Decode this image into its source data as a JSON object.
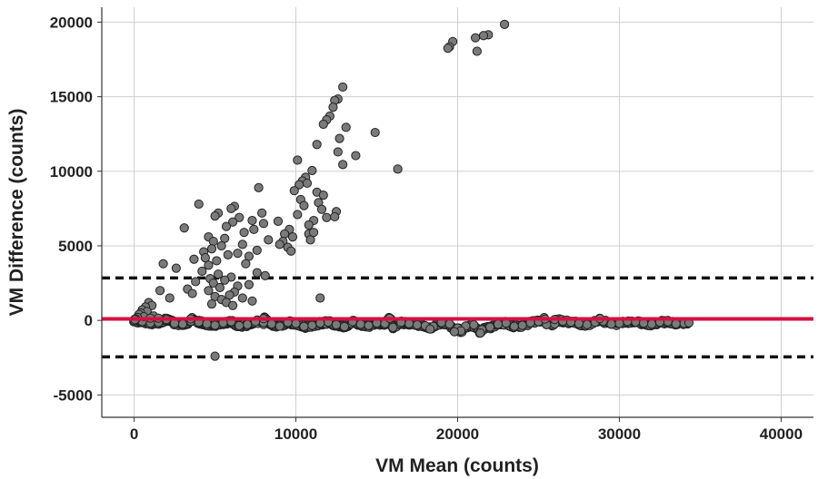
{
  "chart_data": {
    "type": "scatter",
    "xlabel": "VM Mean (counts)",
    "ylabel": "VM Difference (counts)",
    "xlim": [
      -2000,
      42000
    ],
    "ylim": [
      -6500,
      21000
    ],
    "xticks": [
      0,
      10000,
      20000,
      30000,
      40000
    ],
    "yticks": [
      -5000,
      0,
      5000,
      10000,
      15000,
      20000
    ],
    "xtick_labels": [
      "0",
      "10000",
      "20000",
      "30000",
      "40000"
    ],
    "ytick_labels": [
      "-5000",
      "0",
      "5000",
      "10000",
      "15000",
      "20000"
    ],
    "grid": true,
    "reference_lines": [
      {
        "kind": "mean",
        "y": 100,
        "color": "#d6113f",
        "style": "solid"
      },
      {
        "kind": "upper-limit",
        "y": 2850,
        "color": "#111111",
        "style": "dashed"
      },
      {
        "kind": "lower-limit",
        "y": -2450,
        "color": "#111111",
        "style": "dashed"
      }
    ],
    "point_color": "#7a7a7a",
    "point_edge_color": "#222222",
    "points": [
      [
        22900,
        19850
      ],
      [
        21900,
        19150
      ],
      [
        21600,
        19100
      ],
      [
        21100,
        18950
      ],
      [
        19700,
        18700
      ],
      [
        19500,
        18350
      ],
      [
        19400,
        18250
      ],
      [
        21200,
        18050
      ],
      [
        12900,
        15650
      ],
      [
        12600,
        14850
      ],
      [
        12400,
        14750
      ],
      [
        12300,
        14300
      ],
      [
        12100,
        13700
      ],
      [
        11900,
        13450
      ],
      [
        11700,
        13150
      ],
      [
        13100,
        12950
      ],
      [
        14900,
        12600
      ],
      [
        12700,
        12200
      ],
      [
        11300,
        11800
      ],
      [
        12600,
        11300
      ],
      [
        13700,
        11050
      ],
      [
        10100,
        10750
      ],
      [
        12900,
        10450
      ],
      [
        11000,
        10050
      ],
      [
        16300,
        10150
      ],
      [
        10600,
        9600
      ],
      [
        10400,
        9350
      ],
      [
        10700,
        9200
      ],
      [
        10200,
        9100
      ],
      [
        9900,
        8700
      ],
      [
        11300,
        8600
      ],
      [
        11700,
        8400
      ],
      [
        10300,
        8100
      ],
      [
        11400,
        7900
      ],
      [
        10500,
        7700
      ],
      [
        11600,
        7450
      ],
      [
        12500,
        7300
      ],
      [
        10100,
        7100
      ],
      [
        11900,
        6900
      ],
      [
        11100,
        6700
      ],
      [
        12400,
        6950
      ],
      [
        10800,
        6400
      ],
      [
        9600,
        6100
      ],
      [
        9300,
        5800
      ],
      [
        9800,
        5600
      ],
      [
        9200,
        5300
      ],
      [
        9000,
        5100
      ],
      [
        9500,
        4900
      ],
      [
        9700,
        4650
      ],
      [
        10800,
        5800
      ],
      [
        10900,
        5400
      ],
      [
        11100,
        5900
      ],
      [
        7700,
        8900
      ],
      [
        4000,
        7800
      ],
      [
        6200,
        7650
      ],
      [
        6000,
        7500
      ],
      [
        5200,
        7200
      ],
      [
        7900,
        7200
      ],
      [
        5000,
        7000
      ],
      [
        6500,
        6900
      ],
      [
        7300,
        6700
      ],
      [
        6100,
        6600
      ],
      [
        8900,
        6650
      ],
      [
        8000,
        6500
      ],
      [
        5700,
        6300
      ],
      [
        3100,
        6200
      ],
      [
        7400,
        6100
      ],
      [
        6800,
        5900
      ],
      [
        4600,
        5600
      ],
      [
        5600,
        5500
      ],
      [
        4900,
        5300
      ],
      [
        8300,
        5400
      ],
      [
        6700,
        5100
      ],
      [
        5400,
        5000
      ],
      [
        4800,
        4800
      ],
      [
        7600,
        4700
      ],
      [
        4300,
        4600
      ],
      [
        6400,
        4500
      ],
      [
        5800,
        4400
      ],
      [
        7100,
        4300
      ],
      [
        4400,
        4200
      ],
      [
        3700,
        4100
      ],
      [
        5100,
        4000
      ],
      [
        6900,
        3800
      ],
      [
        4600,
        3700
      ],
      [
        1800,
        3800
      ],
      [
        2600,
        3500
      ],
      [
        4200,
        3300
      ],
      [
        7600,
        3200
      ],
      [
        5200,
        3100
      ],
      [
        8100,
        3000
      ],
      [
        6000,
        2900
      ],
      [
        4700,
        2800
      ],
      [
        5600,
        2700
      ],
      [
        3800,
        2600
      ],
      [
        4900,
        2500
      ],
      [
        7100,
        2400
      ],
      [
        6400,
        2300
      ],
      [
        5300,
        2200
      ],
      [
        3300,
        2100
      ],
      [
        4600,
        2000
      ],
      [
        6200,
        1900
      ],
      [
        1600,
        2000
      ],
      [
        2200,
        1500
      ],
      [
        3600,
        1800
      ],
      [
        5900,
        1700
      ],
      [
        5000,
        1600
      ],
      [
        6700,
        1500
      ],
      [
        5400,
        1400
      ],
      [
        5700,
        1200
      ],
      [
        4800,
        1100
      ],
      [
        6100,
        1000
      ],
      [
        7300,
        1300
      ],
      [
        11500,
        1500
      ],
      [
        900,
        1200
      ],
      [
        1100,
        1000
      ],
      [
        700,
        900
      ],
      [
        500,
        700
      ],
      [
        800,
        600
      ],
      [
        400,
        500
      ],
      [
        300,
        400
      ],
      [
        1200,
        300
      ],
      [
        600,
        250
      ],
      [
        200,
        200
      ],
      [
        1000,
        150
      ],
      [
        100,
        100
      ],
      [
        50,
        50
      ],
      [
        1500,
        150
      ],
      [
        5000,
        -2400
      ]
    ],
    "band_points": [
      [
        0,
        -20
      ],
      [
        1000,
        -180
      ],
      [
        2000,
        60
      ],
      [
        3000,
        -250
      ],
      [
        4000,
        -120
      ],
      [
        5000,
        -320
      ],
      [
        6000,
        -90
      ],
      [
        7000,
        -280
      ],
      [
        8000,
        -150
      ],
      [
        9000,
        -390
      ],
      [
        10000,
        -210
      ],
      [
        11000,
        -330
      ],
      [
        12000,
        -120
      ],
      [
        13000,
        -420
      ],
      [
        14000,
        -260
      ],
      [
        15000,
        -180
      ],
      [
        16000,
        -470
      ],
      [
        17000,
        -220
      ],
      [
        18000,
        -360
      ],
      [
        19000,
        -150
      ],
      [
        20000,
        -520
      ],
      [
        21000,
        -300
      ],
      [
        22000,
        -450
      ],
      [
        23000,
        -180
      ],
      [
        24000,
        -330
      ],
      [
        25000,
        -90
      ],
      [
        26000,
        -240
      ],
      [
        27000,
        -120
      ],
      [
        28000,
        -280
      ],
      [
        29000,
        -60
      ],
      [
        30000,
        -200
      ],
      [
        31000,
        -110
      ],
      [
        32000,
        -250
      ],
      [
        33000,
        -90
      ],
      [
        34000,
        -200
      ],
      [
        500,
        -80
      ],
      [
        1500,
        -140
      ],
      [
        2500,
        -200
      ],
      [
        3500,
        -60
      ],
      [
        4500,
        -230
      ],
      [
        5500,
        -170
      ],
      [
        6500,
        -350
      ],
      [
        7500,
        -80
      ],
      [
        8500,
        -240
      ],
      [
        9500,
        -130
      ],
      [
        10500,
        -410
      ],
      [
        11500,
        -190
      ],
      [
        12500,
        -290
      ],
      [
        13500,
        -90
      ],
      [
        14500,
        -340
      ],
      [
        15500,
        -220
      ],
      [
        16500,
        -130
      ],
      [
        17500,
        -300
      ],
      [
        18500,
        -410
      ],
      [
        19500,
        -250
      ],
      [
        20500,
        -380
      ],
      [
        21500,
        -620
      ],
      [
        22500,
        -260
      ],
      [
        23500,
        -400
      ],
      [
        24500,
        -160
      ],
      [
        25500,
        -280
      ],
      [
        26500,
        -60
      ],
      [
        27500,
        -210
      ],
      [
        28500,
        -130
      ],
      [
        29500,
        -250
      ],
      [
        30500,
        -70
      ],
      [
        31500,
        -190
      ],
      [
        32500,
        -120
      ],
      [
        33500,
        -230
      ],
      [
        34300,
        -160
      ],
      [
        20200,
        -700
      ],
      [
        21400,
        -850
      ],
      [
        19800,
        -760
      ],
      [
        18300,
        -580
      ],
      [
        26000,
        60
      ],
      [
        28800,
        120
      ],
      [
        25400,
        90
      ],
      [
        15800,
        140
      ],
      [
        8000,
        120
      ],
      [
        3500,
        100
      ]
    ]
  }
}
